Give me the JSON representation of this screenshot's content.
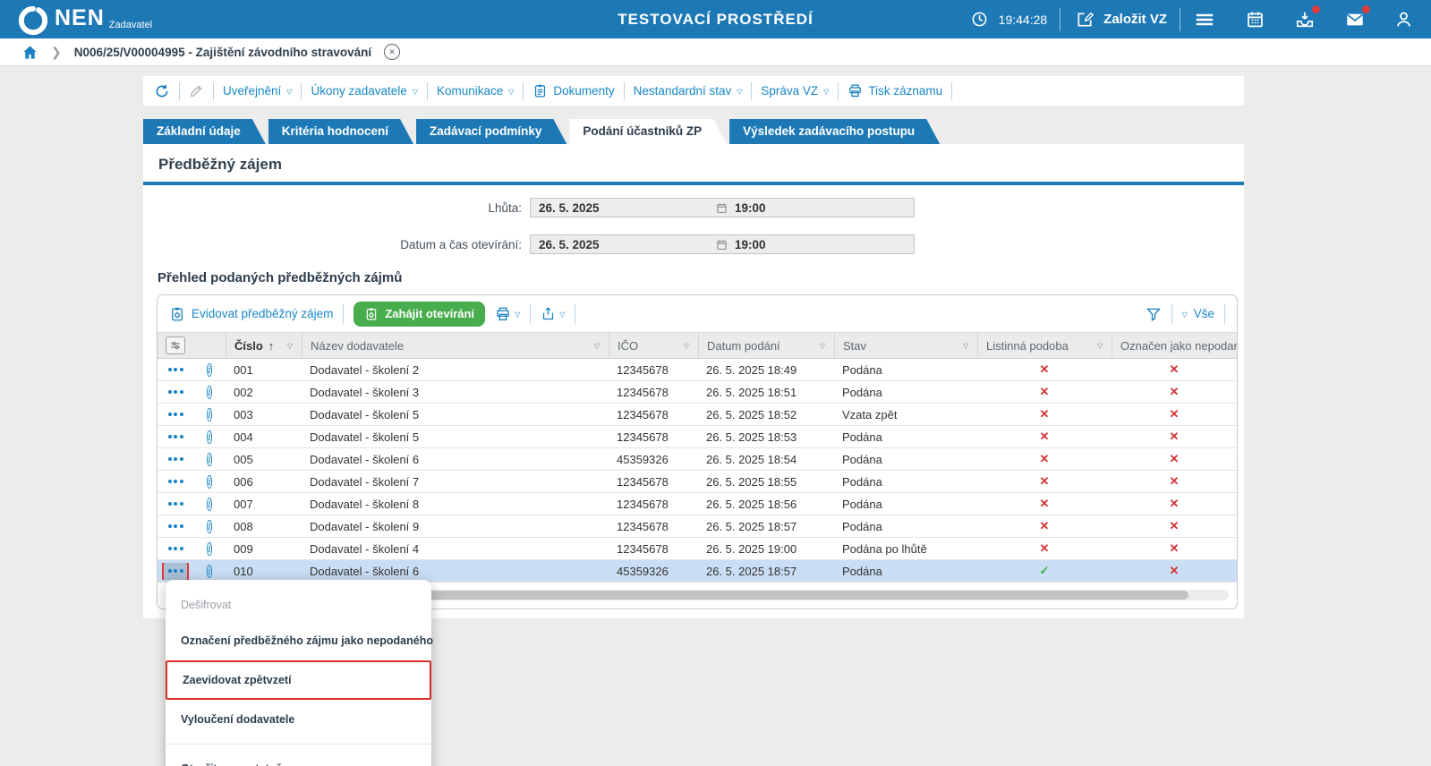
{
  "topbar": {
    "brand": "NEN",
    "brand_sub": "Zadavatel",
    "env_title": "TESTOVACÍ PROSTŘEDÍ",
    "clock": "19:44:28",
    "new_vz_label": "Založit VZ"
  },
  "breadcrumb": {
    "item": "N006/25/V00004995 - Zajištění závodního stravování"
  },
  "record_toolbar": {
    "menus": [
      {
        "label": "Uveřejnění",
        "caret": true,
        "icon": null
      },
      {
        "label": "Úkony zadavatele",
        "caret": true,
        "icon": null
      },
      {
        "label": "Komunikace",
        "caret": true,
        "icon": null
      },
      {
        "label": "Dokumenty",
        "caret": false,
        "icon": "document"
      },
      {
        "label": "Nestandardní stav",
        "caret": true,
        "icon": null
      },
      {
        "label": "Správa VZ",
        "caret": true,
        "icon": null
      },
      {
        "label": "Tisk záznamu",
        "caret": false,
        "icon": "printer"
      }
    ]
  },
  "tabs": [
    {
      "label": "Základní údaje",
      "active": false
    },
    {
      "label": "Kritéria hodnocení",
      "active": false
    },
    {
      "label": "Zadávací podmínky",
      "active": false
    },
    {
      "label": "Podání účastníků ZP",
      "active": true
    },
    {
      "label": "Výsledek zadávacího postupu",
      "active": false
    }
  ],
  "section": {
    "title": "Předběžný zájem",
    "fields": [
      {
        "label": "Lhůta:",
        "date": "26. 5. 2025",
        "time": "19:00"
      },
      {
        "label": "Datum a čas otevírání:",
        "date": "26. 5. 2025",
        "time": "19:00"
      }
    ],
    "grid_title": "Přehled podaných předběžných zájmů"
  },
  "grid": {
    "actions": {
      "register_label": "Evidovat předběžný zájem",
      "start_opening_label": "Zahájit otevírání",
      "filter_all_label": "Vše"
    },
    "columns": [
      "Číslo",
      "Název dodavatele",
      "IČO",
      "Datum podání",
      "Stav",
      "Listinná podoba",
      "Označen jako nepodaný"
    ],
    "sort": {
      "column": "Číslo",
      "direction": "asc"
    },
    "rows": [
      {
        "cislo": "001",
        "nazev": "Dodavatel - školení 2",
        "ico": "12345678",
        "datum": "26. 5. 2025 18:49",
        "stav": "Podána",
        "listinna_podoba": false,
        "oznacen_nepodany": false,
        "selected": false
      },
      {
        "cislo": "002",
        "nazev": "Dodavatel - školení 3",
        "ico": "12345678",
        "datum": "26. 5. 2025 18:51",
        "stav": "Podána",
        "listinna_podoba": false,
        "oznacen_nepodany": false,
        "selected": false
      },
      {
        "cislo": "003",
        "nazev": "Dodavatel - školení 5",
        "ico": "12345678",
        "datum": "26. 5. 2025 18:52",
        "stav": "Vzata zpět",
        "listinna_podoba": false,
        "oznacen_nepodany": false,
        "selected": false
      },
      {
        "cislo": "004",
        "nazev": "Dodavatel - školení 5",
        "ico": "12345678",
        "datum": "26. 5. 2025 18:53",
        "stav": "Podána",
        "listinna_podoba": false,
        "oznacen_nepodany": false,
        "selected": false
      },
      {
        "cislo": "005",
        "nazev": "Dodavatel - školení 6",
        "ico": "45359326",
        "datum": "26. 5. 2025 18:54",
        "stav": "Podána",
        "listinna_podoba": false,
        "oznacen_nepodany": false,
        "selected": false
      },
      {
        "cislo": "006",
        "nazev": "Dodavatel - školení 7",
        "ico": "12345678",
        "datum": "26. 5. 2025 18:55",
        "stav": "Podána",
        "listinna_podoba": false,
        "oznacen_nepodany": false,
        "selected": false
      },
      {
        "cislo": "007",
        "nazev": "Dodavatel - školení 8",
        "ico": "12345678",
        "datum": "26. 5. 2025 18:56",
        "stav": "Podána",
        "listinna_podoba": false,
        "oznacen_nepodany": false,
        "selected": false
      },
      {
        "cislo": "008",
        "nazev": "Dodavatel - školení 9",
        "ico": "12345678",
        "datum": "26. 5. 2025 18:57",
        "stav": "Podána",
        "listinna_podoba": false,
        "oznacen_nepodany": false,
        "selected": false
      },
      {
        "cislo": "009",
        "nazev": "Dodavatel - školení 4",
        "ico": "12345678",
        "datum": "26. 5. 2025 19:00",
        "stav": "Podána po lhůtě",
        "listinna_podoba": false,
        "oznacen_nepodany": false,
        "selected": false
      },
      {
        "cislo": "010",
        "nazev": "Dodavatel - školení 6",
        "ico": "45359326",
        "datum": "26. 5. 2025 18:57",
        "stav": "Podána",
        "listinna_podoba": true,
        "oznacen_nepodany": false,
        "selected": true
      }
    ]
  },
  "context_menu": {
    "items": [
      {
        "label": "Dešifrovat",
        "disabled": true,
        "highlighted": false,
        "group_end": false
      },
      {
        "label": "Označení předběžného zájmu jako nepodaného",
        "disabled": false,
        "highlighted": false,
        "group_end": false
      },
      {
        "label": "Zaevidovat zpětvzetí",
        "disabled": false,
        "highlighted": true,
        "group_end": false
      },
      {
        "label": "Vyloučení dodavatele",
        "disabled": false,
        "highlighted": false,
        "group_end": true
      },
      {
        "label": "Otevřít samostatně",
        "disabled": false,
        "highlighted": false,
        "group_end": false
      }
    ]
  },
  "colors": {
    "primary_blue": "#1d79b6",
    "link_blue": "#1887c6",
    "green": "#47ad4d",
    "red": "#d23535",
    "selected_row": "#c9def4"
  }
}
